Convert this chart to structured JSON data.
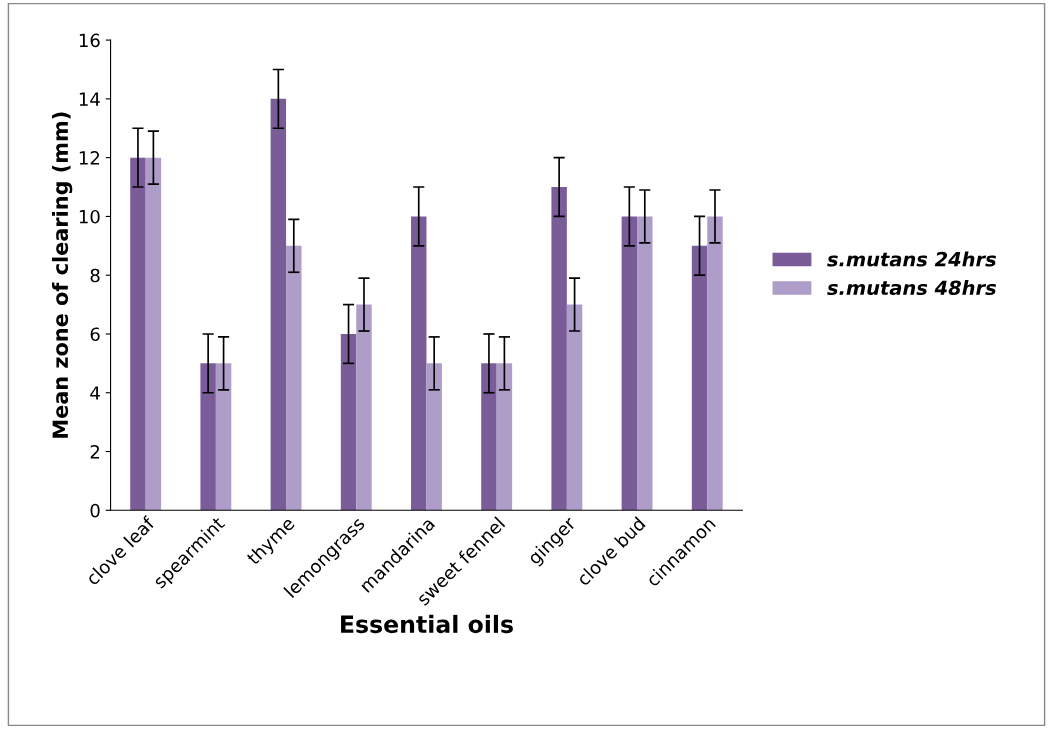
{
  "chart_data": {
    "type": "bar",
    "xlabel": "Essential oils",
    "ylabel": "Mean zone of clearing (mm)",
    "categories": [
      "clove leaf",
      "spearmint",
      "thyme",
      "lemongrass",
      "mandarina",
      "sweet fennel",
      "ginger",
      "clove bud",
      "cinnamon"
    ],
    "series": [
      {
        "name": "s.mutans 24hrs",
        "color": "#7a5c99",
        "values": [
          12,
          5,
          14,
          6,
          10,
          5,
          11,
          10,
          9
        ],
        "errors": [
          1,
          1,
          1,
          1,
          1,
          1,
          1,
          1,
          1
        ]
      },
      {
        "name": "s.mutans 48hrs",
        "color": "#ae9dc8",
        "values": [
          12,
          5,
          9,
          7,
          5,
          5,
          7,
          10,
          10
        ],
        "errors": [
          0.9,
          0.9,
          0.9,
          0.9,
          0.9,
          0.9,
          0.9,
          0.9,
          0.9
        ]
      }
    ],
    "ylim": [
      0,
      16
    ],
    "yticks": [
      0,
      2,
      4,
      6,
      8,
      10,
      12,
      14,
      16
    ],
    "grid": false,
    "legend": "right"
  }
}
